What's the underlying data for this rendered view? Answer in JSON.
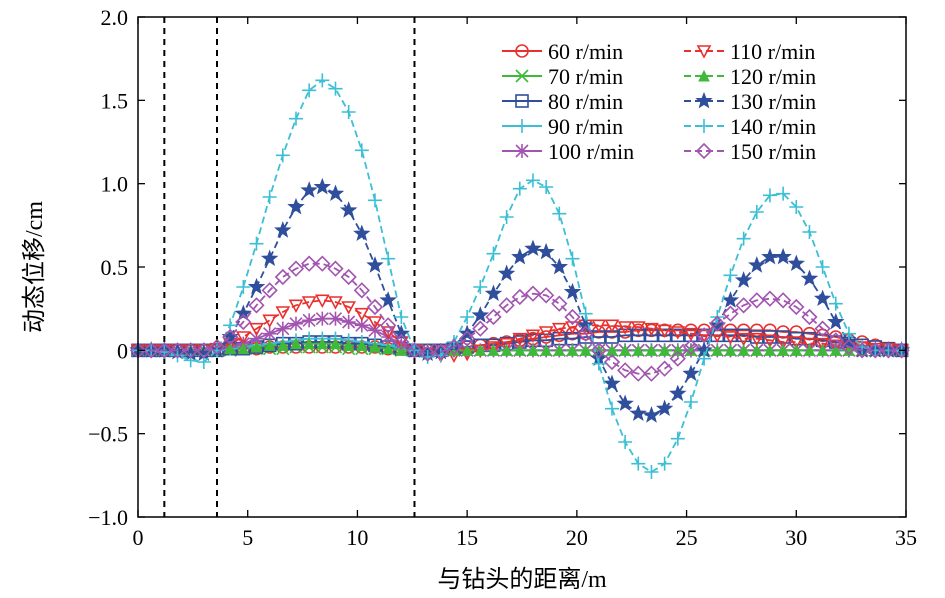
{
  "chart_data": {
    "type": "line",
    "xlabel": "与钻头的距离/m",
    "ylabel": "动态位移/cm",
    "xlim": [
      0,
      35
    ],
    "ylim": [
      -1.0,
      2.0
    ],
    "xticks": [
      0,
      5,
      10,
      15,
      20,
      25,
      30,
      35
    ],
    "yticks": [
      -1.0,
      -0.5,
      0,
      0.5,
      1.0,
      1.5,
      2.0
    ],
    "xtick_labels": [
      "0",
      "5",
      "10",
      "15",
      "20",
      "25",
      "30",
      "35"
    ],
    "ytick_labels": [
      "−1.0",
      "−0.5",
      "0",
      "0.5",
      "1.0",
      "1.5",
      "2.0"
    ],
    "vlines": [
      1.2,
      3.6,
      12.6
    ],
    "grid": false,
    "legend_position": "top-right",
    "x": [
      0,
      0.6,
      1.2,
      1.8,
      2.4,
      3,
      3.6,
      4.2,
      4.8,
      5.4,
      6,
      6.6,
      7.2,
      7.8,
      8.4,
      9,
      9.6,
      10.2,
      10.8,
      11.4,
      12,
      12.6,
      13.2,
      13.8,
      14.4,
      15,
      15.6,
      16.2,
      16.8,
      17.4,
      18,
      18.6,
      19.2,
      19.8,
      20.4,
      21,
      21.6,
      22.2,
      22.8,
      23.4,
      24,
      24.6,
      25.2,
      25.8,
      26.4,
      27,
      27.6,
      28.2,
      28.8,
      29.4,
      30,
      30.6,
      31.2,
      31.8,
      32.4,
      33,
      33.6,
      34.2,
      34.8
    ],
    "series": [
      {
        "name": "60 r/min",
        "color": "#e8312f",
        "marker": "circle",
        "dash": "solid",
        "values": [
          0,
          0,
          0,
          0,
          0,
          0,
          0,
          0.01,
          0.01,
          0.01,
          0.02,
          0.02,
          0.02,
          0.02,
          0.02,
          0.02,
          0.02,
          0.02,
          0.02,
          0.01,
          0.01,
          0,
          0,
          0,
          0.01,
          0.02,
          0.03,
          0.04,
          0.05,
          0.06,
          0.07,
          0.08,
          0.09,
          0.1,
          0.1,
          0.11,
          0.11,
          0.11,
          0.12,
          0.12,
          0.12,
          0.12,
          0.12,
          0.12,
          0.12,
          0.12,
          0.12,
          0.12,
          0.12,
          0.11,
          0.11,
          0.1,
          0.09,
          0.08,
          0.06,
          0.05,
          0.03,
          0.01,
          0
        ]
      },
      {
        "name": "70 r/min",
        "color": "#3fb93a",
        "marker": "x",
        "dash": "solid",
        "values": [
          0,
          0,
          0,
          0,
          0,
          0,
          0,
          0,
          0.01,
          0.01,
          0.01,
          0.01,
          0.02,
          0.02,
          0.02,
          0.02,
          0.01,
          0.01,
          0.01,
          0.01,
          0,
          0,
          0,
          0,
          0,
          0,
          0,
          0,
          0,
          0,
          0,
          0,
          0,
          0,
          0,
          0,
          0,
          0,
          0,
          0,
          0,
          0,
          0,
          0,
          0,
          0,
          0,
          0,
          0,
          0,
          0,
          0,
          0,
          0,
          0,
          0,
          0,
          0,
          0
        ]
      },
      {
        "name": "80 r/min",
        "color": "#2f4f9c",
        "marker": "square",
        "dash": "solid",
        "values": [
          0,
          0,
          0,
          0,
          0,
          0,
          0,
          0.01,
          0.01,
          0.02,
          0.03,
          0.04,
          0.04,
          0.05,
          0.05,
          0.05,
          0.04,
          0.04,
          0.03,
          0.02,
          0.01,
          0,
          0,
          0,
          0.01,
          0.02,
          0.03,
          0.03,
          0.04,
          0.05,
          0.06,
          0.06,
          0.07,
          0.07,
          0.08,
          0.08,
          0.08,
          0.09,
          0.09,
          0.09,
          0.09,
          0.09,
          0.09,
          0.09,
          0.09,
          0.09,
          0.09,
          0.08,
          0.08,
          0.08,
          0.07,
          0.07,
          0.06,
          0.05,
          0.04,
          0.03,
          0.02,
          0.01,
          0
        ]
      },
      {
        "name": "90 r/min",
        "color": "#3cbfd6",
        "marker": "plus",
        "dash": "solid",
        "values": [
          0,
          0,
          0,
          0,
          0,
          0,
          0,
          0.01,
          0.02,
          0.03,
          0.04,
          0.05,
          0.06,
          0.07,
          0.07,
          0.07,
          0.06,
          0.05,
          0.04,
          0.03,
          0.01,
          0,
          0,
          0,
          0,
          0,
          0,
          0,
          0,
          0,
          0,
          0,
          0,
          0,
          0,
          0,
          0,
          0,
          0,
          0,
          0,
          0,
          0,
          0,
          0,
          0,
          0,
          0,
          0,
          0,
          0,
          0,
          0,
          0,
          0,
          0,
          0,
          0,
          0
        ]
      },
      {
        "name": "100 r/min",
        "color": "#a255b0",
        "marker": "asterisk",
        "dash": "solid",
        "values": [
          0,
          0,
          0,
          0,
          0,
          0,
          0,
          0.02,
          0.04,
          0.07,
          0.1,
          0.13,
          0.16,
          0.18,
          0.19,
          0.19,
          0.17,
          0.15,
          0.12,
          0.08,
          0.04,
          0,
          0,
          0,
          0,
          0,
          0,
          0,
          0,
          0,
          0,
          0,
          0,
          0,
          0,
          0,
          0,
          0,
          0,
          0,
          0,
          0,
          0,
          0,
          0,
          0,
          0,
          0,
          0,
          0,
          0,
          0,
          0,
          0,
          0,
          0,
          0,
          0,
          0
        ]
      },
      {
        "name": "110 r/min",
        "color": "#e8312f",
        "marker": "triangle-down",
        "dash": "dashed",
        "values": [
          0,
          0,
          0,
          0,
          0,
          0,
          0.01,
          0.04,
          0.08,
          0.13,
          0.18,
          0.23,
          0.27,
          0.29,
          0.3,
          0.29,
          0.26,
          0.22,
          0.17,
          0.11,
          0.05,
          0,
          -0.02,
          -0.03,
          -0.03,
          -0.02,
          0,
          0.02,
          0.04,
          0.07,
          0.09,
          0.11,
          0.13,
          0.14,
          0.15,
          0.15,
          0.15,
          0.14,
          0.14,
          0.13,
          0.12,
          0.11,
          0.1,
          0.09,
          0.09,
          0.08,
          0.07,
          0.07,
          0.06,
          0.05,
          0.05,
          0.04,
          0.04,
          0.03,
          0.02,
          0.02,
          0.01,
          0.01,
          0
        ]
      },
      {
        "name": "120 r/min",
        "color": "#3fb93a",
        "marker": "triangle-up",
        "dash": "dashed",
        "values": [
          0,
          0,
          0,
          0,
          0,
          0,
          0,
          0.01,
          0.01,
          0.02,
          0.03,
          0.03,
          0.04,
          0.04,
          0.04,
          0.04,
          0.03,
          0.03,
          0.02,
          0.01,
          0,
          0,
          0,
          0,
          0,
          0,
          0,
          0,
          0,
          0,
          0,
          0,
          0,
          0,
          0,
          0,
          0,
          0,
          0,
          0,
          0,
          0,
          0,
          0,
          0,
          0,
          0,
          0,
          0,
          0,
          0,
          0,
          0,
          0,
          0,
          0,
          0,
          0,
          0
        ]
      },
      {
        "name": "130 r/min",
        "color": "#2f4f9c",
        "marker": "star",
        "dash": "dashed",
        "values": [
          0,
          0,
          0,
          -0.01,
          -0.02,
          -0.02,
          0,
          0.08,
          0.22,
          0.38,
          0.55,
          0.72,
          0.86,
          0.96,
          0.98,
          0.94,
          0.84,
          0.7,
          0.51,
          0.3,
          0.1,
          0,
          -0.02,
          -0.01,
          0.03,
          0.1,
          0.21,
          0.34,
          0.46,
          0.56,
          0.61,
          0.59,
          0.5,
          0.35,
          0.15,
          -0.05,
          -0.2,
          -0.32,
          -0.38,
          -0.39,
          -0.35,
          -0.26,
          -0.14,
          0,
          0.15,
          0.3,
          0.42,
          0.51,
          0.56,
          0.56,
          0.52,
          0.43,
          0.31,
          0.17,
          0.05,
          0,
          0,
          0,
          0
        ]
      },
      {
        "name": "140 r/min",
        "color": "#3cbfd6",
        "marker": "plus",
        "dash": "dashed",
        "values": [
          0,
          0,
          -0.01,
          -0.03,
          -0.06,
          -0.07,
          0,
          0.15,
          0.38,
          0.64,
          0.92,
          1.17,
          1.39,
          1.56,
          1.62,
          1.57,
          1.43,
          1.2,
          0.9,
          0.55,
          0.2,
          0,
          -0.04,
          -0.03,
          0.05,
          0.2,
          0.38,
          0.58,
          0.8,
          0.97,
          1.02,
          0.98,
          0.82,
          0.55,
          0.22,
          -0.08,
          -0.35,
          -0.55,
          -0.68,
          -0.73,
          -0.68,
          -0.53,
          -0.31,
          -0.05,
          0.2,
          0.45,
          0.67,
          0.83,
          0.93,
          0.94,
          0.86,
          0.71,
          0.5,
          0.28,
          0.1,
          0.02,
          0,
          0,
          0
        ]
      },
      {
        "name": "150 r/min",
        "color": "#a255b0",
        "marker": "diamond",
        "dash": "dashed",
        "values": [
          0,
          0,
          0,
          0,
          0,
          0,
          0.02,
          0.08,
          0.17,
          0.27,
          0.36,
          0.44,
          0.49,
          0.52,
          0.52,
          0.49,
          0.44,
          0.36,
          0.26,
          0.15,
          0.05,
          0,
          -0.02,
          -0.01,
          0.02,
          0.07,
          0.13,
          0.2,
          0.27,
          0.32,
          0.34,
          0.33,
          0.28,
          0.2,
          0.1,
          0,
          -0.07,
          -0.12,
          -0.14,
          -0.14,
          -0.11,
          -0.05,
          0.02,
          0.09,
          0.16,
          0.22,
          0.27,
          0.3,
          0.31,
          0.3,
          0.26,
          0.2,
          0.13,
          0.06,
          0.02,
          0,
          0,
          0,
          0
        ]
      }
    ]
  }
}
